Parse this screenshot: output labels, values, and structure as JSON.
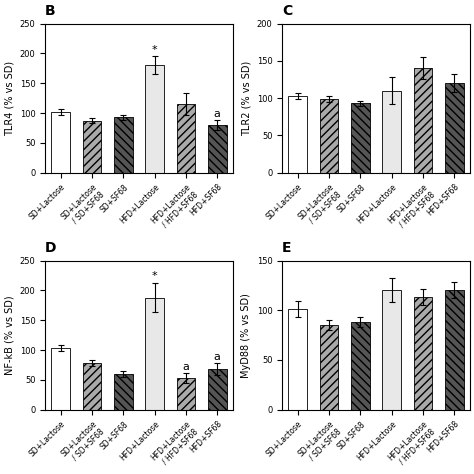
{
  "chart_data": [
    {
      "type": "bar",
      "title": "B",
      "categories": [
        "SD+Lactose",
        "SD+Lactose\n/ SD+SF68",
        "SD+SF68",
        "HFD+Lactose",
        "HFD+Lactose\n/ HFD+SF68",
        "HFD+SF68"
      ],
      "values": [
        101,
        87,
        93,
        180,
        115,
        80
      ],
      "errors": [
        5,
        4,
        4,
        15,
        18,
        8
      ],
      "ylabel": "TLR4 (% vs SD)",
      "ylim": [
        0,
        250
      ],
      "yticks": [
        0,
        50,
        100,
        150,
        200,
        250
      ],
      "colors": [
        "white",
        "#aaaaaa",
        "#555555",
        "#e8e8e8",
        "#aaaaaa",
        "#555555"
      ],
      "annotations": [
        {
          "x": "HFD+Lactose",
          "y": 197,
          "text": "*"
        },
        {
          "x": "HFD+SF68",
          "y": 90,
          "text": "a"
        }
      ],
      "grid": false
    },
    {
      "type": "bar",
      "title": "C",
      "categories": [
        "SD+Lactose",
        "SD+Lactose\n/ SD+SF68",
        "SD+SF68",
        "HFD+Lactose",
        "HFD+Lactose\n/ HFD+SF68",
        "HFD+SF68"
      ],
      "values": [
        103,
        99,
        93,
        110,
        140,
        120
      ],
      "errors": [
        4,
        4,
        3,
        18,
        15,
        12
      ],
      "ylabel": "TLR2 (% vs SD)",
      "ylim": [
        0,
        200
      ],
      "yticks": [
        0,
        50,
        100,
        150,
        200
      ],
      "colors": [
        "white",
        "#aaaaaa",
        "#555555",
        "#e8e8e8",
        "#aaaaaa",
        "#555555"
      ],
      "annotations": [],
      "grid": false
    },
    {
      "type": "bar",
      "title": "D",
      "categories": [
        "SD+Lactose",
        "SD+Lactose\n/ SD+SF68",
        "SD+SF68",
        "HFD+Lactose",
        "HFD+Lactose\n/ HFD+SF68",
        "HFD+SF68"
      ],
      "values": [
        103,
        78,
        60,
        188,
        53,
        68
      ],
      "errors": [
        5,
        5,
        5,
        25,
        8,
        10
      ],
      "ylabel": "NF-kB (% vs SD)",
      "ylim": [
        0,
        250
      ],
      "yticks": [
        0,
        50,
        100,
        150,
        200,
        250
      ],
      "colors": [
        "white",
        "#aaaaaa",
        "#555555",
        "#e8e8e8",
        "#aaaaaa",
        "#555555"
      ],
      "annotations": [
        {
          "x": "HFD+Lactose",
          "y": 215,
          "text": "*"
        },
        {
          "x": "HFD+Lactose\n/ HFD+SF68",
          "y": 63,
          "text": "a"
        },
        {
          "x": "HFD+SF68",
          "y": 80,
          "text": "a"
        }
      ],
      "grid": false
    },
    {
      "type": "bar",
      "title": "E",
      "categories": [
        "SD+Lactose",
        "SD+Lactose\n/ SD+SF68",
        "SD+SF68",
        "HFD+Lactose",
        "HFD+Lactose\n/ HFD+SF68",
        "HFD+SF68"
      ],
      "values": [
        101,
        85,
        88,
        120,
        113,
        120
      ],
      "errors": [
        8,
        5,
        5,
        12,
        8,
        8
      ],
      "ylabel": "MyD88 (% vs SD)",
      "ylim": [
        0,
        150
      ],
      "yticks": [
        0,
        50,
        100,
        150
      ],
      "colors": [
        "white",
        "#aaaaaa",
        "#555555",
        "#e8e8e8",
        "#aaaaaa",
        "#555555"
      ],
      "annotations": [],
      "grid": false
    }
  ]
}
